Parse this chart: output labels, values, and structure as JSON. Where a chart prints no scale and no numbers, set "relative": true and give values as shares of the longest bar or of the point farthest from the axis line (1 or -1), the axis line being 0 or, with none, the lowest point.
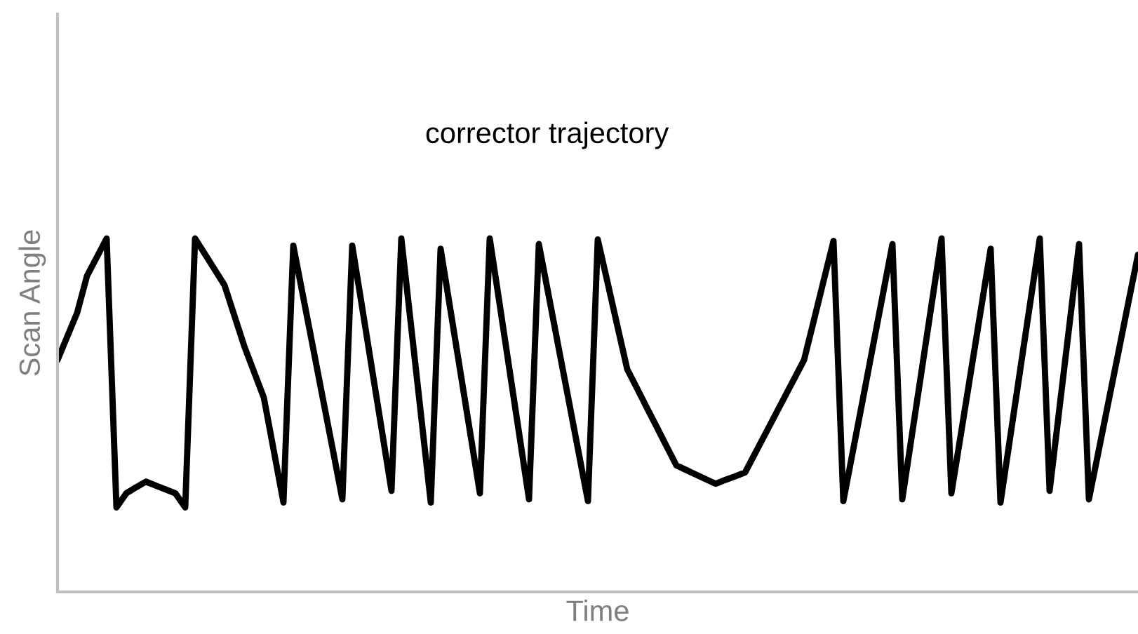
{
  "chart_data": {
    "type": "line",
    "title": "corrector trajectory",
    "xlabel": "Time",
    "ylabel": "Scan Angle",
    "relative": true,
    "tick_labels": false,
    "grid": false,
    "legend": false,
    "categories": [
      null,
      null,
      null,
      null,
      null,
      null,
      null,
      null,
      null,
      null,
      null,
      null,
      null,
      null,
      null,
      null,
      null,
      null,
      null,
      null,
      null,
      null,
      null,
      null,
      null,
      null,
      null,
      null,
      null,
      null,
      null,
      null,
      null,
      null,
      null,
      null,
      null,
      null,
      null,
      null,
      null,
      null,
      null,
      null,
      null,
      null,
      null,
      null,
      null,
      null,
      null,
      null,
      null,
      null,
      null,
      null,
      null,
      null,
      null,
      null,
      null,
      null,
      null,
      null,
      null,
      null,
      null,
      null,
      null,
      null,
      null,
      null,
      null,
      null,
      null,
      null,
      null,
      null,
      null,
      null,
      null,
      null,
      null,
      null,
      null,
      null,
      null,
      null,
      null,
      null,
      null,
      null,
      null,
      null,
      null,
      null,
      null,
      null,
      null,
      null,
      null,
      null,
      null,
      null,
      null,
      null,
      null,
      null,
      null,
      null,
      null
    ],
    "series": [
      {
        "color": "#000000",
        "values": [
          0.656,
          0.723,
          0.79,
          0.894,
          0.947,
          1.0,
          0.239,
          0.279,
          0.296,
          0.312,
          0.301,
          0.29,
          0.279,
          0.239,
          1.0,
          0.956,
          0.912,
          0.868,
          0.782,
          0.696,
          0.623,
          0.55,
          0.402,
          0.253,
          0.98,
          0.836,
          0.693,
          0.549,
          0.406,
          0.262,
          0.98,
          0.807,
          0.633,
          0.46,
          0.286,
          1.0,
          0.751,
          0.502,
          0.253,
          0.971,
          0.798,
          0.625,
          0.452,
          0.279,
          1.0,
          0.816,
          0.631,
          0.447,
          0.262,
          0.984,
          0.839,
          0.693,
          0.548,
          0.402,
          0.257,
          0.997,
          0.875,
          0.752,
          0.63,
          0.576,
          0.521,
          0.467,
          0.412,
          0.358,
          0.345,
          0.332,
          0.319,
          0.306,
          0.317,
          0.327,
          0.338,
          0.391,
          0.444,
          0.497,
          0.55,
          0.603,
          0.656,
          0.768,
          0.881,
          0.993,
          0.257,
          0.402,
          0.547,
          0.693,
          0.838,
          0.984,
          0.262,
          0.447,
          0.631,
          0.816,
          1.0,
          0.279,
          0.452,
          0.625,
          0.798,
          0.971,
          0.253,
          0.44,
          0.627,
          0.813,
          1.0,
          0.286,
          0.519,
          0.751,
          0.984,
          0.262,
          0.4,
          0.539,
          0.677,
          0.816,
          0.954
        ]
      }
    ]
  }
}
